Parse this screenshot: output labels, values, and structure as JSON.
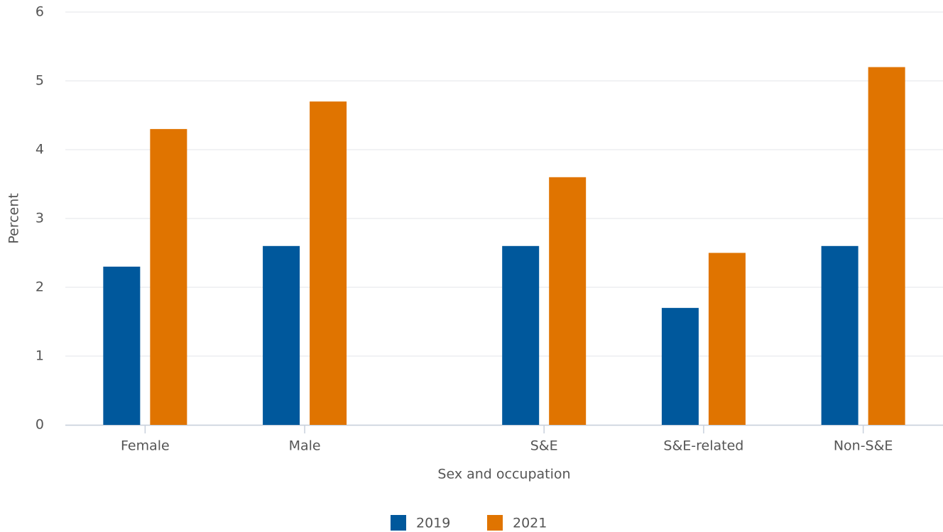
{
  "chart_data": {
    "type": "bar",
    "x_label": "Sex and occupation",
    "y_label": "Percent",
    "categories": [
      "Female",
      "Male",
      null,
      "S&E",
      "S&E-related",
      "Non-S&E"
    ],
    "series": [
      {
        "name": "2019",
        "color": "#00589c",
        "values": [
          2.3,
          2.6,
          null,
          2.6,
          1.7,
          2.6
        ]
      },
      {
        "name": "2021",
        "color": "#e07400",
        "values": [
          4.3,
          4.7,
          null,
          3.6,
          2.5,
          5.2
        ]
      }
    ],
    "ylim": [
      0,
      6
    ],
    "yticks": [
      0,
      1,
      2,
      3,
      4,
      5,
      6
    ],
    "grid": true,
    "legend": "bottom"
  }
}
